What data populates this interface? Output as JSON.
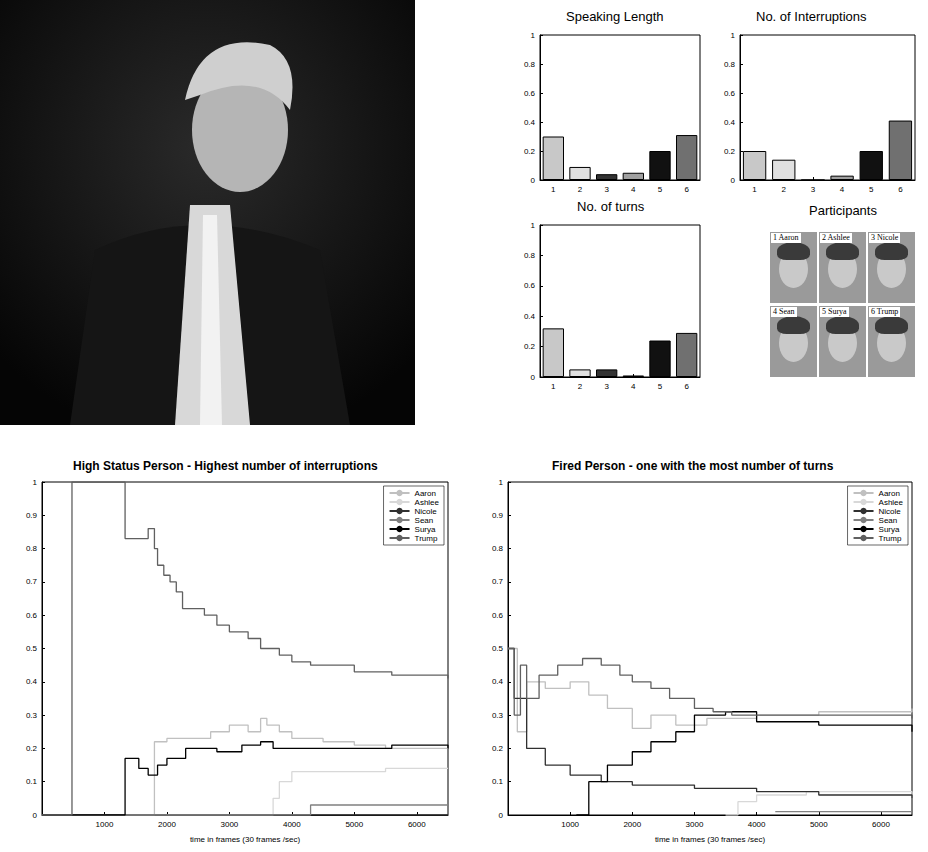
{
  "chart_data": [
    {
      "type": "bar",
      "title": "Speaking Length",
      "categories": [
        "1",
        "2",
        "3",
        "4",
        "5",
        "6"
      ],
      "values": [
        0.3,
        0.09,
        0.04,
        0.05,
        0.2,
        0.31
      ],
      "colors": [
        "#c8c8c8",
        "#e0e0e0",
        "#333333",
        "#a0a0a0",
        "#111111",
        "#707070"
      ],
      "ylim": [
        0,
        1
      ],
      "yticks": [
        0,
        0.2,
        0.4,
        0.6,
        0.8,
        1
      ],
      "grid": false
    },
    {
      "type": "bar",
      "title": "No. of Interruptions",
      "categories": [
        "1",
        "2",
        "3",
        "4",
        "5",
        "6"
      ],
      "values": [
        0.2,
        0.14,
        0,
        0.03,
        0.2,
        0.41
      ],
      "colors": [
        "#c8c8c8",
        "#e0e0e0",
        "#333333",
        "#a0a0a0",
        "#111111",
        "#707070"
      ],
      "ylim": [
        0,
        1
      ],
      "yticks": [
        0,
        0.2,
        0.4,
        0.6,
        0.8,
        1
      ],
      "grid": false
    },
    {
      "type": "bar",
      "title": "No. of turns",
      "categories": [
        "1",
        "2",
        "3",
        "4",
        "5",
        "6"
      ],
      "values": [
        0.32,
        0.05,
        0.05,
        0.01,
        0.24,
        0.29
      ],
      "colors": [
        "#c8c8c8",
        "#e0e0e0",
        "#333333",
        "#a0a0a0",
        "#111111",
        "#707070"
      ],
      "ylim": [
        0,
        1
      ],
      "yticks": [
        0,
        0.2,
        0.4,
        0.6,
        0.8,
        1
      ],
      "grid": false
    },
    {
      "type": "line",
      "line_style": "step",
      "title": "High Status Person - Highest number of interruptions",
      "xlabel": "time in frames (30 frames /sec)",
      "xlim": [
        0,
        6500
      ],
      "xticks": [
        1000,
        2000,
        3000,
        4000,
        5000,
        6000
      ],
      "ylim": [
        0,
        1
      ],
      "yticks": [
        0,
        0.1,
        0.2,
        0.3,
        0.4,
        0.5,
        0.6,
        0.7,
        0.8,
        0.9,
        1
      ],
      "grid": false,
      "legend": "upper right",
      "series": [
        {
          "name": "Aaron",
          "color": "#c0c0c0",
          "values": [
            [
              0,
              0
            ],
            [
              1800,
              0.22
            ],
            [
              2000,
              0.23
            ],
            [
              2700,
              0.25
            ],
            [
              3000,
              0.27
            ],
            [
              3300,
              0.25
            ],
            [
              3500,
              0.29
            ],
            [
              3600,
              0.27
            ],
            [
              3800,
              0.25
            ],
            [
              4000,
              0.23
            ],
            [
              4500,
              0.22
            ],
            [
              5000,
              0.21
            ],
            [
              5500,
              0.2
            ],
            [
              6500,
              0.2
            ]
          ]
        },
        {
          "name": "Ashlee",
          "color": "#d8d8d8",
          "values": [
            [
              0,
              0
            ],
            [
              3700,
              0.05
            ],
            [
              3800,
              0.1
            ],
            [
              4000,
              0.13
            ],
            [
              5500,
              0.14
            ],
            [
              6500,
              0.14
            ]
          ]
        },
        {
          "name": "Nicole",
          "color": "#303030",
          "values": [
            [
              0,
              0
            ],
            [
              6500,
              0
            ]
          ]
        },
        {
          "name": "Sean",
          "color": "#808080",
          "values": [
            [
              0,
              0
            ],
            [
              4300,
              0.03
            ],
            [
              6500,
              0.03
            ]
          ]
        },
        {
          "name": "Surya",
          "color": "#000000",
          "values": [
            [
              0,
              0
            ],
            [
              1330,
              0.17
            ],
            [
              1550,
              0.14
            ],
            [
              1700,
              0.12
            ],
            [
              1850,
              0.15
            ],
            [
              2000,
              0.17
            ],
            [
              2300,
              0.2
            ],
            [
              2800,
              0.19
            ],
            [
              3200,
              0.21
            ],
            [
              3500,
              0.22
            ],
            [
              3700,
              0.2
            ],
            [
              4200,
              0.2
            ],
            [
              5600,
              0.21
            ],
            [
              6500,
              0.2
            ]
          ]
        },
        {
          "name": "Trump",
          "color": "#606060",
          "values": [
            [
              0,
              0
            ],
            [
              480,
              1
            ],
            [
              1330,
              0.83
            ],
            [
              1700,
              0.86
            ],
            [
              1800,
              0.8
            ],
            [
              1850,
              0.75
            ],
            [
              1950,
              0.72
            ],
            [
              2050,
              0.7
            ],
            [
              2150,
              0.67
            ],
            [
              2250,
              0.62
            ],
            [
              2600,
              0.6
            ],
            [
              2800,
              0.57
            ],
            [
              3000,
              0.55
            ],
            [
              3300,
              0.53
            ],
            [
              3500,
              0.5
            ],
            [
              3800,
              0.48
            ],
            [
              4000,
              0.46
            ],
            [
              4300,
              0.45
            ],
            [
              5000,
              0.43
            ],
            [
              5600,
              0.42
            ],
            [
              6500,
              0.41
            ]
          ]
        }
      ]
    },
    {
      "type": "line",
      "line_style": "step",
      "title": "Fired Person - one with the most number of turns",
      "xlabel": "time in frames (30 frames /sec)",
      "xlim": [
        0,
        6500
      ],
      "xticks": [
        1000,
        2000,
        3000,
        4000,
        5000,
        6000
      ],
      "ylim": [
        0,
        1
      ],
      "yticks": [
        0,
        0.1,
        0.2,
        0.3,
        0.4,
        0.5,
        0.6,
        0.7,
        0.8,
        0.9,
        1
      ],
      "grid": false,
      "legend": "upper right",
      "series": [
        {
          "name": "Aaron",
          "color": "#c0c0c0",
          "values": [
            [
              0,
              0.5
            ],
            [
              150,
              0.25
            ],
            [
              300,
              0.4
            ],
            [
              600,
              0.38
            ],
            [
              1000,
              0.4
            ],
            [
              1300,
              0.36
            ],
            [
              1600,
              0.32
            ],
            [
              2000,
              0.26
            ],
            [
              2300,
              0.3
            ],
            [
              2700,
              0.27
            ],
            [
              3200,
              0.29
            ],
            [
              4000,
              0.3
            ],
            [
              5000,
              0.31
            ],
            [
              6500,
              0.32
            ]
          ]
        },
        {
          "name": "Ashlee",
          "color": "#d8d8d8",
          "values": [
            [
              3500,
              0
            ],
            [
              3700,
              0.04
            ],
            [
              4000,
              0.06
            ],
            [
              4800,
              0.07
            ],
            [
              6500,
              0.05
            ]
          ]
        },
        {
          "name": "Nicole",
          "color": "#303030",
          "values": [
            [
              0,
              0.5
            ],
            [
              100,
              0.35
            ],
            [
              300,
              0.2
            ],
            [
              600,
              0.15
            ],
            [
              1000,
              0.12
            ],
            [
              1500,
              0.1
            ],
            [
              2000,
              0.09
            ],
            [
              3000,
              0.08
            ],
            [
              4000,
              0.07
            ],
            [
              5000,
              0.06
            ],
            [
              6500,
              0.05
            ]
          ]
        },
        {
          "name": "Sean",
          "color": "#808080",
          "values": [
            [
              4300,
              0.01
            ],
            [
              6500,
              0.01
            ]
          ]
        },
        {
          "name": "Surya",
          "color": "#000000",
          "values": [
            [
              1100,
              0
            ],
            [
              1300,
              0.1
            ],
            [
              1600,
              0.15
            ],
            [
              2000,
              0.19
            ],
            [
              2300,
              0.22
            ],
            [
              2700,
              0.25
            ],
            [
              3000,
              0.3
            ],
            [
              3500,
              0.31
            ],
            [
              4000,
              0.28
            ],
            [
              5000,
              0.27
            ],
            [
              6500,
              0.25
            ]
          ]
        },
        {
          "name": "Trump",
          "color": "#606060",
          "values": [
            [
              0,
              0.5
            ],
            [
              100,
              0.3
            ],
            [
              200,
              0.45
            ],
            [
              300,
              0.35
            ],
            [
              500,
              0.42
            ],
            [
              800,
              0.45
            ],
            [
              1200,
              0.47
            ],
            [
              1500,
              0.45
            ],
            [
              1800,
              0.42
            ],
            [
              2000,
              0.4
            ],
            [
              2300,
              0.38
            ],
            [
              2600,
              0.35
            ],
            [
              3000,
              0.32
            ],
            [
              3300,
              0.31
            ],
            [
              3600,
              0.3
            ],
            [
              5000,
              0.3
            ],
            [
              6500,
              0.29
            ]
          ]
        }
      ]
    }
  ],
  "participants": {
    "title": "Participants",
    "labels": [
      "1 Aaron",
      "2 Ashlee",
      "3 Nicole",
      "4 Sean",
      "5 Surya",
      "6 Trump"
    ]
  }
}
